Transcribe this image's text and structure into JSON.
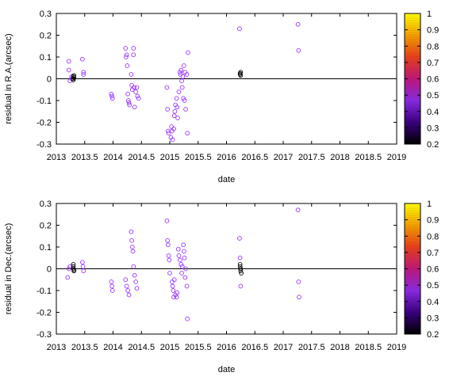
{
  "chart_data": [
    {
      "type": "scatter",
      "xlabel": "date",
      "ylabel": "residual in R.A.(arcsec)",
      "xlim": [
        2013,
        2019
      ],
      "ylim": [
        -0.3,
        0.3
      ],
      "xticks": [
        "2013",
        "2013.5",
        "2014",
        "2014.5",
        "2015",
        "2015.5",
        "2016",
        "2016.5",
        "2017",
        "2017.5",
        "2018",
        "2018.5",
        "2019"
      ],
      "yticks": [
        "-0.3",
        "-0.2",
        "-0.1",
        "0",
        "0.1",
        "0.2",
        "0.3"
      ],
      "zero_line": true,
      "grid": false,
      "colorbar": {
        "range": [
          0.2,
          1.0
        ],
        "ticks": [
          "1",
          "0.9",
          "0.8",
          "0.7",
          "0.6",
          "0.5",
          "0.4",
          "0.3",
          "0.2"
        ],
        "stops": [
          "#000000",
          "#3a0080",
          "#8a2be2",
          "#c0187a",
          "#e8401a",
          "#f5a000",
          "#ffff00"
        ]
      },
      "series": [
        {
          "marker": "open-circle",
          "color": "#9933ff",
          "points": [
            [
              2013.22,
              0.08
            ],
            [
              2013.22,
              0.04
            ],
            [
              2013.24,
              -0.01
            ],
            [
              2013.27,
              0.0
            ],
            [
              2013.27,
              0.01
            ],
            [
              2013.46,
              0.09
            ],
            [
              2013.48,
              0.03
            ],
            [
              2013.48,
              0.02
            ],
            [
              2013.97,
              -0.07
            ],
            [
              2013.98,
              -0.08
            ],
            [
              2013.99,
              -0.09
            ],
            [
              2014.22,
              0.14
            ],
            [
              2014.23,
              0.1
            ],
            [
              2014.24,
              0.11
            ],
            [
              2014.25,
              0.06
            ],
            [
              2014.26,
              -0.07
            ],
            [
              2014.27,
              -0.1
            ],
            [
              2014.28,
              -0.11
            ],
            [
              2014.29,
              -0.12
            ],
            [
              2014.32,
              0.02
            ],
            [
              2014.33,
              -0.03
            ],
            [
              2014.34,
              -0.05
            ],
            [
              2014.36,
              0.14
            ],
            [
              2014.36,
              0.11
            ],
            [
              2014.37,
              -0.04
            ],
            [
              2014.38,
              -0.13
            ],
            [
              2014.4,
              -0.06
            ],
            [
              2014.42,
              -0.04
            ],
            [
              2014.43,
              -0.08
            ],
            [
              2014.45,
              -0.09
            ],
            [
              2014.95,
              -0.04
            ],
            [
              2014.96,
              -0.14
            ],
            [
              2014.97,
              -0.24
            ],
            [
              2014.98,
              -0.25
            ],
            [
              2015.02,
              -0.27
            ],
            [
              2015.03,
              -0.22
            ],
            [
              2015.04,
              -0.24
            ],
            [
              2015.05,
              -0.28
            ],
            [
              2015.07,
              -0.23
            ],
            [
              2015.08,
              -0.17
            ],
            [
              2015.09,
              -0.15
            ],
            [
              2015.1,
              -0.12
            ],
            [
              2015.12,
              -0.09
            ],
            [
              2015.13,
              -0.13
            ],
            [
              2015.14,
              -0.18
            ],
            [
              2015.16,
              -0.06
            ],
            [
              2015.18,
              0.03
            ],
            [
              2015.19,
              0.02
            ],
            [
              2015.2,
              0.04
            ],
            [
              2015.21,
              -0.01
            ],
            [
              2015.22,
              -0.04
            ],
            [
              2015.23,
              0.01
            ],
            [
              2015.24,
              -0.09
            ],
            [
              2015.25,
              0.06
            ],
            [
              2015.26,
              -0.1
            ],
            [
              2015.27,
              0.03
            ],
            [
              2015.28,
              -0.14
            ],
            [
              2015.3,
              0.02
            ],
            [
              2015.31,
              -0.25
            ],
            [
              2015.32,
              0.12
            ],
            [
              2016.23,
              0.23
            ],
            [
              2017.26,
              0.25
            ],
            [
              2017.27,
              0.13
            ]
          ]
        },
        {
          "marker": "open-circle",
          "color": "#000000",
          "points": [
            [
              2013.3,
              0.01
            ],
            [
              2013.3,
              0.0
            ],
            [
              2013.3,
              -0.005
            ],
            [
              2013.31,
              0.015
            ],
            [
              2013.31,
              0.005
            ],
            [
              2016.24,
              0.02
            ],
            [
              2016.24,
              0.025
            ],
            [
              2016.25,
              0.03
            ],
            [
              2016.25,
              0.015
            ]
          ]
        }
      ]
    },
    {
      "type": "scatter",
      "xlabel": "date",
      "ylabel": "residual in Dec.(arcsec)",
      "xlim": [
        2013,
        2019
      ],
      "ylim": [
        -0.3,
        0.3
      ],
      "xticks": [
        "2013",
        "2013.5",
        "2014",
        "2014.5",
        "2015",
        "2015.5",
        "2016",
        "2016.5",
        "2017",
        "2017.5",
        "2018",
        "2018.5",
        "2019"
      ],
      "yticks": [
        "-0.3",
        "-0.2",
        "-0.1",
        "0",
        "0.1",
        "0.2",
        "0.3"
      ],
      "zero_line": true,
      "grid": false,
      "colorbar": {
        "range": [
          0.2,
          1.0
        ],
        "ticks": [
          "1",
          "0.9",
          "0.8",
          "0.7",
          "0.6",
          "0.5",
          "0.4",
          "0.3",
          "0.2"
        ],
        "stops": [
          "#000000",
          "#3a0080",
          "#8a2be2",
          "#c0187a",
          "#e8401a",
          "#f5a000",
          "#ffff00"
        ]
      },
      "series": [
        {
          "marker": "open-circle",
          "color": "#9933ff",
          "points": [
            [
              2013.2,
              -0.04
            ],
            [
              2013.22,
              0.0
            ],
            [
              2013.24,
              0.01
            ],
            [
              2013.46,
              0.03
            ],
            [
              2013.47,
              0.01
            ],
            [
              2013.48,
              -0.01
            ],
            [
              2013.97,
              -0.06
            ],
            [
              2013.98,
              -0.08
            ],
            [
              2013.99,
              -0.1
            ],
            [
              2014.22,
              -0.05
            ],
            [
              2014.24,
              -0.08
            ],
            [
              2014.26,
              -0.1
            ],
            [
              2014.28,
              -0.12
            ],
            [
              2014.32,
              0.17
            ],
            [
              2014.33,
              0.13
            ],
            [
              2014.34,
              0.1
            ],
            [
              2014.35,
              0.08
            ],
            [
              2014.36,
              0.01
            ],
            [
              2014.38,
              -0.03
            ],
            [
              2014.4,
              -0.06
            ],
            [
              2014.42,
              -0.09
            ],
            [
              2014.95,
              0.22
            ],
            [
              2014.96,
              0.13
            ],
            [
              2014.97,
              0.11
            ],
            [
              2014.98,
              0.06
            ],
            [
              2014.99,
              0.04
            ],
            [
              2015.0,
              -0.02
            ],
            [
              2015.04,
              -0.06
            ],
            [
              2015.05,
              -0.08
            ],
            [
              2015.06,
              -0.1
            ],
            [
              2015.07,
              -0.13
            ],
            [
              2015.08,
              -0.05
            ],
            [
              2015.1,
              -0.12
            ],
            [
              2015.12,
              -0.13
            ],
            [
              2015.13,
              -0.11
            ],
            [
              2015.15,
              0.09
            ],
            [
              2015.16,
              0.06
            ],
            [
              2015.18,
              0.04
            ],
            [
              2015.2,
              0.02
            ],
            [
              2015.21,
              -0.02
            ],
            [
              2015.22,
              0.01
            ],
            [
              2015.24,
              0.11
            ],
            [
              2015.25,
              0.08
            ],
            [
              2015.26,
              0.05
            ],
            [
              2015.27,
              -0.04
            ],
            [
              2015.28,
              0.0
            ],
            [
              2015.3,
              -0.08
            ],
            [
              2015.31,
              -0.23
            ],
            [
              2016.23,
              0.14
            ],
            [
              2016.24,
              0.05
            ],
            [
              2016.25,
              -0.08
            ],
            [
              2017.26,
              0.27
            ],
            [
              2017.27,
              -0.06
            ],
            [
              2017.28,
              -0.13
            ]
          ]
        },
        {
          "marker": "open-circle",
          "color": "#000000",
          "points": [
            [
              2013.3,
              0.02
            ],
            [
              2013.3,
              0.01
            ],
            [
              2013.3,
              0.0
            ],
            [
              2013.31,
              -0.01
            ],
            [
              2013.31,
              -0.005
            ],
            [
              2016.24,
              0.02
            ],
            [
              2016.24,
              0.01
            ],
            [
              2016.25,
              0.0
            ],
            [
              2016.25,
              -0.01
            ],
            [
              2016.26,
              -0.02
            ]
          ]
        }
      ]
    }
  ]
}
